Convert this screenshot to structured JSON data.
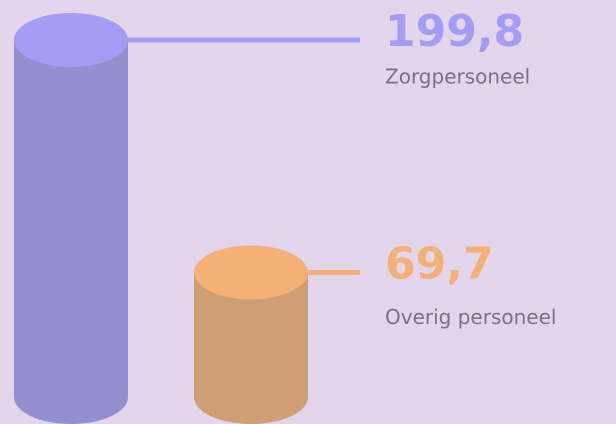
{
  "chart_data": {
    "type": "bar",
    "categories": [
      "Zorgpersoneel",
      "Overig personeel"
    ],
    "values": [
      199.8,
      69.7
    ],
    "value_labels": [
      "199,8",
      "69,7"
    ],
    "colors": [
      "#a49cf5",
      "#f4b077"
    ]
  }
}
